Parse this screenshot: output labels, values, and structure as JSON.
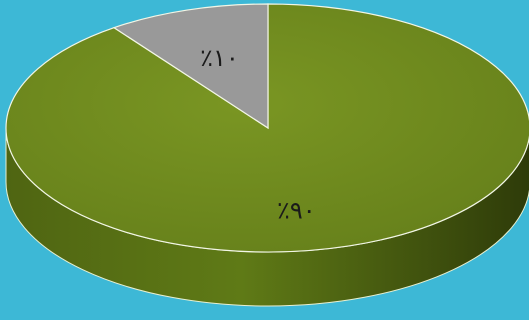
{
  "chart_data": {
    "type": "pie",
    "style": "3d",
    "title": "",
    "slices": [
      {
        "value": 90,
        "label": "٪۹۰",
        "color": "#6e8b1e"
      },
      {
        "value": 10,
        "label": "٪۱۰",
        "color": "#999999"
      }
    ],
    "background_color": "#3db8d6",
    "legend": "none"
  }
}
